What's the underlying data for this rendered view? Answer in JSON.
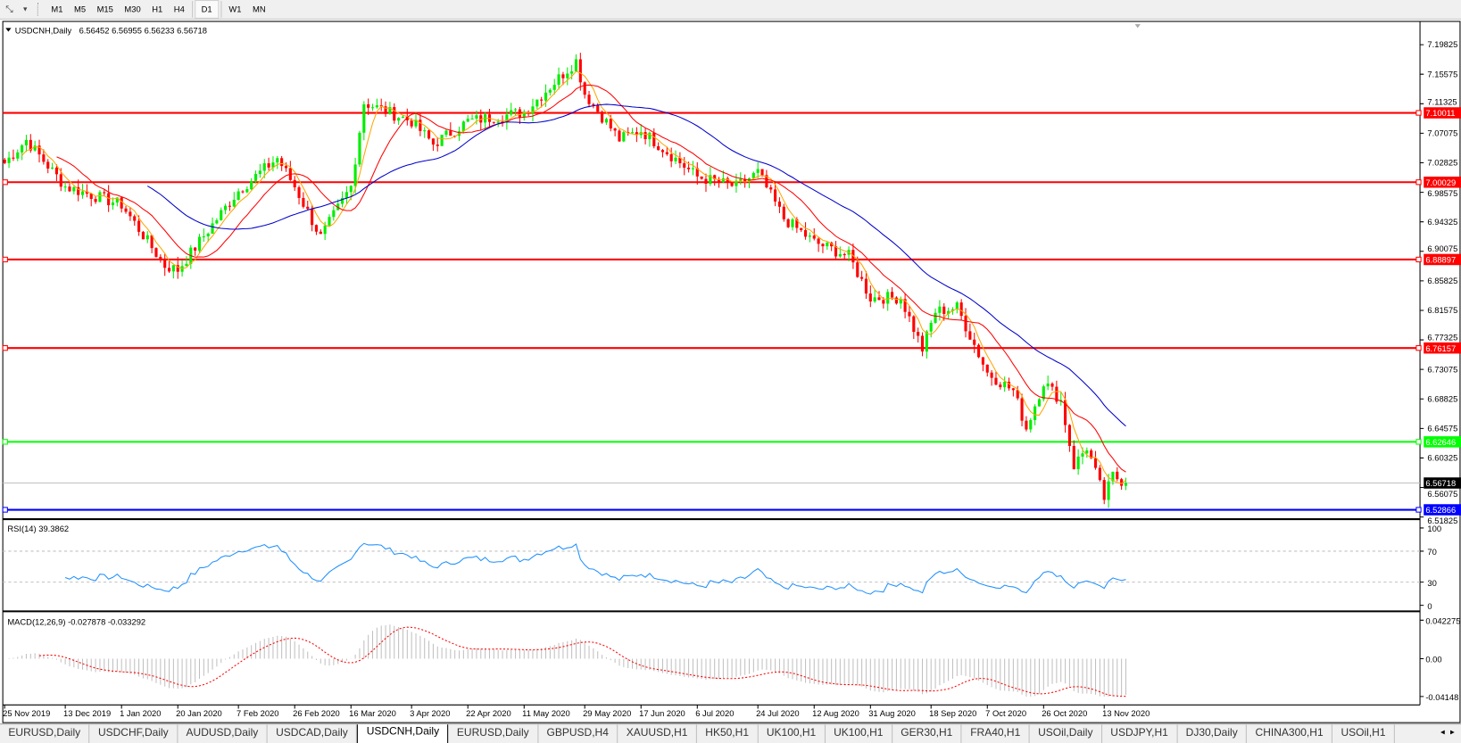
{
  "toolbar": {
    "timeframes": [
      "M1",
      "M5",
      "M15",
      "M30",
      "H1",
      "H4",
      "D1",
      "W1",
      "MN"
    ],
    "active_timeframe": "D1"
  },
  "chart": {
    "symbol_title": "USDCNH,Daily",
    "ohlc": "6.56452 6.56955 6.56233 6.56718",
    "price_ticks": [
      "7.19825",
      "7.15575",
      "7.11325",
      "7.07075",
      "7.02825",
      "6.98575",
      "6.94325",
      "6.90075",
      "6.85825",
      "6.81575",
      "6.77325",
      "6.73075",
      "6.68825",
      "6.64575",
      "6.60325",
      "6.56075",
      "6.51825"
    ],
    "levels": [
      {
        "price": "7.10011",
        "color": "#ff0000"
      },
      {
        "price": "7.00029",
        "color": "#ff0000"
      },
      {
        "price": "6.88897",
        "color": "#ff0000"
      },
      {
        "price": "6.76157",
        "color": "#ff0000"
      },
      {
        "price": "6.62646",
        "color": "#00ff00"
      },
      {
        "price": "6.52866",
        "color": "#0000ff"
      }
    ],
    "current_price": "6.56718",
    "candle_colors": {
      "up": "#00ee00",
      "down": "#ff0000"
    },
    "ma_colors": {
      "fast": "#ffa500",
      "medium": "#ff0000",
      "slow": "#0000cc"
    },
    "price_path": [
      [
        "2019-11-25",
        7.028
      ],
      [
        "2019-12-02",
        7.061
      ],
      [
        "2019-12-13",
        6.994
      ],
      [
        "2020-01-01",
        6.968
      ],
      [
        "2020-01-15",
        6.88
      ],
      [
        "2020-01-20",
        6.874
      ],
      [
        "2020-02-07",
        6.988
      ],
      [
        "2020-02-20",
        7.035
      ],
      [
        "2020-02-26",
        6.994
      ],
      [
        "2020-03-05",
        6.921
      ],
      [
        "2020-03-16",
        6.994
      ],
      [
        "2020-03-19",
        7.115
      ],
      [
        "2020-04-03",
        7.088
      ],
      [
        "2020-04-10",
        7.055
      ],
      [
        "2020-04-22",
        7.088
      ],
      [
        "2020-05-11",
        7.101
      ],
      [
        "2020-05-27",
        7.175
      ],
      [
        "2020-05-29",
        7.128
      ],
      [
        "2020-06-10",
        7.062
      ],
      [
        "2020-06-17",
        7.075
      ],
      [
        "2020-07-06",
        7.008
      ],
      [
        "2020-07-17",
        6.994
      ],
      [
        "2020-07-24",
        7.014
      ],
      [
        "2020-08-03",
        6.948
      ],
      [
        "2020-08-12",
        6.914
      ],
      [
        "2020-08-24",
        6.894
      ],
      [
        "2020-08-31",
        6.834
      ],
      [
        "2020-09-09",
        6.834
      ],
      [
        "2020-09-16",
        6.76
      ],
      [
        "2020-09-21",
        6.814
      ],
      [
        "2020-09-28",
        6.82
      ],
      [
        "2020-10-07",
        6.726
      ],
      [
        "2020-10-15",
        6.7
      ],
      [
        "2020-10-20",
        6.646
      ],
      [
        "2020-10-26",
        6.713
      ],
      [
        "2020-10-30",
        6.686
      ],
      [
        "2020-11-04",
        6.592
      ],
      [
        "2020-11-09",
        6.619
      ],
      [
        "2020-11-13",
        6.545
      ],
      [
        "2020-11-17",
        6.578
      ],
      [
        "2020-11-20",
        6.567
      ]
    ]
  },
  "rsi": {
    "label": "RSI(14) 39.3862",
    "ticks": [
      "100",
      "70",
      "30",
      "0"
    ],
    "color": "#1e90ff"
  },
  "macd": {
    "label": "MACD(12,26,9) -0.027878 -0.033292",
    "ticks": [
      "0.042275",
      "0.00",
      "-0.04148"
    ],
    "range": [
      -0.04148,
      0.042275
    ]
  },
  "date_axis": [
    {
      "label": "25 Nov 2019",
      "date": "2019-11-25"
    },
    {
      "label": "13 Dec 2019",
      "date": "2019-12-13"
    },
    {
      "label": "1 Jan 2020",
      "date": "2020-01-01"
    },
    {
      "label": "20 Jan 2020",
      "date": "2020-01-20"
    },
    {
      "label": "7 Feb 2020",
      "date": "2020-02-07"
    },
    {
      "label": "26 Feb 2020",
      "date": "2020-02-26"
    },
    {
      "label": "16 Mar 2020",
      "date": "2020-03-16"
    },
    {
      "label": "3 Apr 2020",
      "date": "2020-04-03"
    },
    {
      "label": "22 Apr 2020",
      "date": "2020-04-22"
    },
    {
      "label": "11 May 2020",
      "date": "2020-05-11"
    },
    {
      "label": "29 May 2020",
      "date": "2020-05-29"
    },
    {
      "label": "17 Jun 2020",
      "date": "2020-06-17"
    },
    {
      "label": "6 Jul 2020",
      "date": "2020-07-06"
    },
    {
      "label": "24 Jul 2020",
      "date": "2020-07-24"
    },
    {
      "label": "12 Aug 2020",
      "date": "2020-08-12"
    },
    {
      "label": "31 Aug 2020",
      "date": "2020-08-31"
    },
    {
      "label": "18 Sep 2020",
      "date": "2020-09-18"
    },
    {
      "label": "7 Oct 2020",
      "date": "2020-10-07"
    },
    {
      "label": "26 Oct 2020",
      "date": "2020-10-26"
    },
    {
      "label": "13 Nov 2020",
      "date": "2020-11-13"
    }
  ],
  "tabs": [
    "EURUSD,Daily",
    "USDCHF,Daily",
    "AUDUSD,Daily",
    "USDCAD,Daily",
    "USDCNH,Daily",
    "EURUSD,Daily",
    "GBPUSD,H4",
    "XAUUSD,H1",
    "HK50,H1",
    "UK100,H1",
    "UK100,H1",
    "GER30,H1",
    "FRA40,H1",
    "USOil,Daily",
    "USDJPY,H1",
    "DJ30,Daily",
    "CHINA300,H1",
    "USOil,H1"
  ],
  "active_tab": "USDCNH,Daily",
  "tab_scroll": {
    "left": "◂",
    "right": "▸"
  }
}
